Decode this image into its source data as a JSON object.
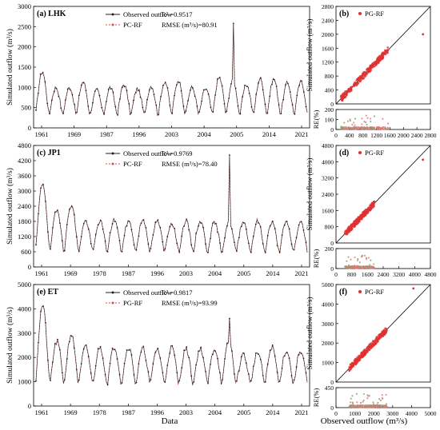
{
  "figure": {
    "xlabel_main": "Data",
    "xlabel_scatter": "Observed outflow (m³/s)"
  },
  "chart_data": [
    {
      "id": "a",
      "type": "line",
      "panel_label": "(a) LHK",
      "ylabel": "Simulated outflow (m³/s)",
      "ylim": [
        0,
        3000
      ],
      "yticks": [
        0,
        500,
        1000,
        1500,
        2000,
        2500,
        3000
      ],
      "x_ticks": [
        "1961",
        "1969",
        "1987",
        "1996",
        "2003",
        "2004",
        "2005",
        "2014",
        "2021"
      ],
      "legend": [
        "Observed outflow",
        "PC-RF"
      ],
      "stats": {
        "r2": "R² =0.9517",
        "rmse": "RMSE (m³/s)=80.91"
      },
      "series": [
        {
          "name": "Observed outflow",
          "color": "#222222",
          "base": 300,
          "amp": 700,
          "peaks": [
            1.55,
            1.0,
            1.0,
            1.2,
            0.9,
            1.0,
            1.1,
            0.95,
            1.05,
            1.2,
            1.25,
            1.0,
            0.95,
            1.35,
            1.25,
            1.1,
            1.3,
            1.3,
            1.15,
            1.2
          ],
          "spikes": [
            {
              "i": 14,
              "v": 2580
            }
          ]
        },
        {
          "name": "PC-RF",
          "color": "#d94a4a"
        }
      ]
    },
    {
      "id": "b",
      "type": "scatter",
      "panel_label": "(b)",
      "legend": [
        "PG-RF"
      ],
      "ylabel": "Simulated outflow (m³/s)",
      "re_label": "RE(%)",
      "xlim": [
        0,
        2800
      ],
      "xticks": [
        0,
        400,
        800,
        1200,
        1600,
        2000,
        2400,
        2800
      ],
      "ylim": [
        0,
        2800
      ],
      "yticks": [
        0,
        400,
        800,
        1200,
        1600,
        2000,
        2400,
        2800
      ],
      "re_ylim": [
        0,
        200
      ],
      "re_yticks": [
        0,
        100,
        200
      ],
      "n_points": 240,
      "x_range": [
        150,
        1550
      ],
      "outlier": [
        2580,
        2000
      ]
    },
    {
      "id": "c",
      "type": "line",
      "panel_label": "(c) JP1",
      "ylabel": "Simulated outflow (m³/s)",
      "ylim": [
        0,
        4800
      ],
      "yticks": [
        0,
        600,
        1200,
        1800,
        2400,
        3000,
        3600,
        4200,
        4800
      ],
      "x_ticks": [
        "1961",
        "1969",
        "1978",
        "1987",
        "1996",
        "2003",
        "2004",
        "2005",
        "2014",
        "2021"
      ],
      "legend": [
        "Observed outflow",
        "PC-RF"
      ],
      "stats": {
        "r2": "R² =0.9769",
        "rmse": "RMSE (m³/s)=78.40"
      },
      "series": [
        {
          "name": "Observed outflow",
          "color": "#222222",
          "base": 550,
          "amp": 1200,
          "peaks": [
            2.3,
            1.4,
            1.6,
            1.05,
            1.05,
            1.1,
            1.05,
            1.1,
            1.05,
            1.0,
            1.05,
            1.05,
            1.0,
            1.0,
            1.05,
            1.05,
            1.0,
            1.0,
            1.0
          ],
          "spikes": [
            {
              "i": 13,
              "v": 4420
            }
          ]
        },
        {
          "name": "PC-RF",
          "color": "#d94a4a"
        }
      ]
    },
    {
      "id": "d",
      "type": "scatter",
      "panel_label": "(d)",
      "legend": [
        "PG-RF"
      ],
      "ylabel": "Simulated outflow (m³/s)",
      "re_label": "RE(%)",
      "xlim": [
        0,
        4800
      ],
      "xticks": [
        0,
        800,
        1600,
        2400,
        3200,
        4000,
        4800
      ],
      "ylim": [
        0,
        4800
      ],
      "yticks": [
        0,
        800,
        1600,
        2400,
        3200,
        4000,
        4800
      ],
      "re_ylim": [
        0,
        200
      ],
      "re_yticks": [
        0,
        200
      ],
      "n_points": 220,
      "x_range": [
        450,
        1950
      ],
      "outlier": [
        4420,
        4100
      ]
    },
    {
      "id": "e",
      "type": "line",
      "panel_label": "(e) ET",
      "ylabel": "Simulated outflow (m³/s)",
      "ylim": [
        0,
        5000
      ],
      "yticks": [
        0,
        1000,
        2000,
        3000,
        4000,
        5000
      ],
      "x_ticks": [
        "1961",
        "1969",
        "1978",
        "1987",
        "1996",
        "2003",
        "2004",
        "2005",
        "2014",
        "2021"
      ],
      "legend": [
        "Observed outflow",
        "PG-RF"
      ],
      "stats": {
        "r2": "R² =0.9817",
        "rmse": "RMSE (m³/s)=93.99"
      },
      "series": [
        {
          "name": "Observed outflow",
          "color": "#222222",
          "base": 850,
          "amp": 1500,
          "peaks": [
            2.2,
            1.2,
            1.4,
            1.05,
            1.05,
            1.05,
            1.05,
            1.0,
            1.0,
            1.05,
            1.0,
            1.0,
            1.0,
            1.2,
            0.85,
            0.9,
            1.05,
            0.95,
            0.95
          ],
          "spikes": [
            {
              "i": 13,
              "v": 3600
            }
          ]
        },
        {
          "name": "PG-RF",
          "color": "#d94a4a"
        }
      ]
    },
    {
      "id": "f",
      "type": "scatter",
      "panel_label": "(f)",
      "legend": [
        "PG-RF"
      ],
      "ylabel": "Simulated outflow (m³/s)",
      "re_label": "RE(%)",
      "xlim": [
        0,
        5000
      ],
      "xticks": [
        0,
        1000,
        2000,
        3000,
        4000,
        5000
      ],
      "ylim": [
        0,
        5000
      ],
      "yticks": [
        0,
        1000,
        2000,
        3000,
        4000,
        5000
      ],
      "re_ylim": [
        0,
        450
      ],
      "re_yticks": [
        0,
        450
      ],
      "n_points": 220,
      "x_range": [
        700,
        2700
      ],
      "outlier": [
        4100,
        4800
      ]
    }
  ]
}
